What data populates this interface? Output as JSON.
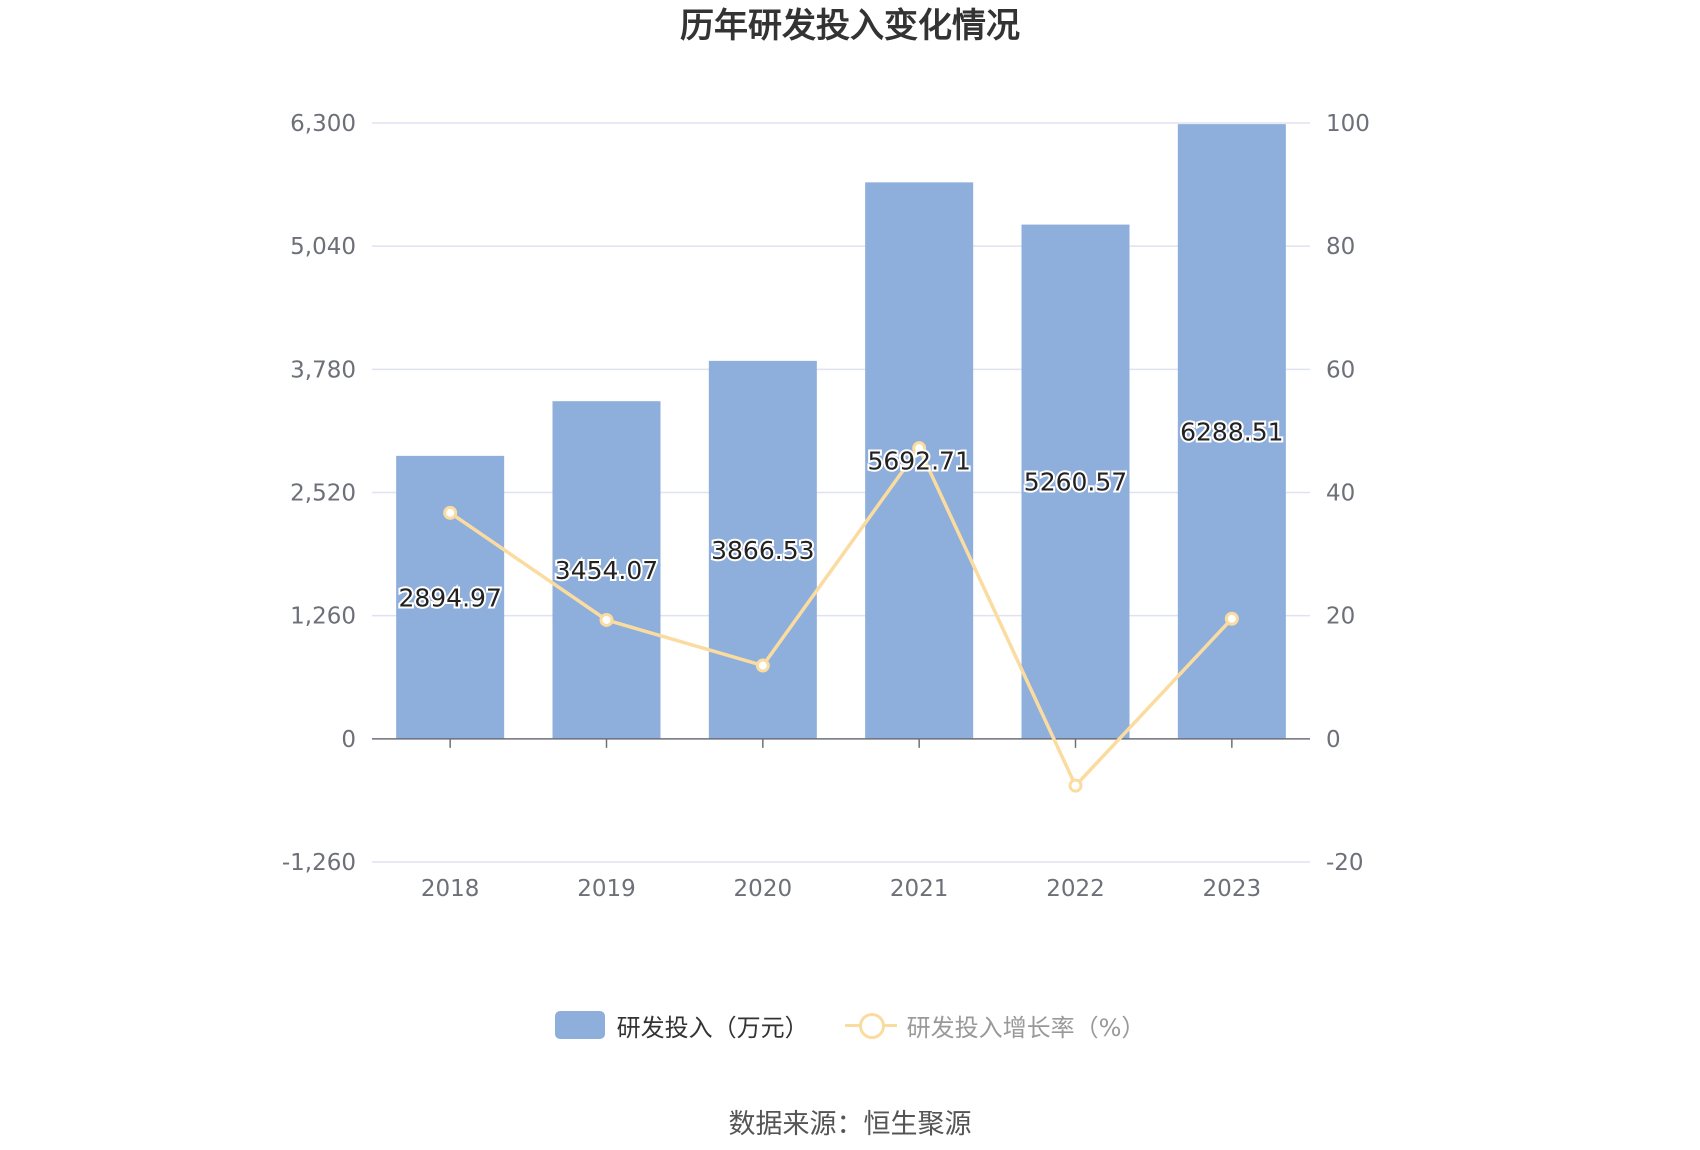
{
  "title": "历年研发投入变化情况",
  "source": "数据来源：恒生聚源",
  "colors": {
    "bar": "#8eaedb",
    "line": "#fbdca0",
    "grid": "#dfe2f0",
    "axis": "#6e7079"
  },
  "legend": [
    {
      "name": "研发投入（万元）",
      "shape": "bar"
    },
    {
      "name": "研发投入增长率（%）",
      "shape": "line"
    }
  ],
  "chart_data": {
    "type": "bar",
    "categories": [
      "2018",
      "2019",
      "2020",
      "2021",
      "2022",
      "2023"
    ],
    "series": [
      {
        "name": "研发投入（万元）",
        "type": "bar",
        "axis": "left",
        "values": [
          2894.97,
          3454.07,
          3866.53,
          5692.71,
          5260.57,
          6288.51
        ],
        "labels": [
          "2894.97",
          "3454.07",
          "3866.53",
          "5692.71",
          "5260.57",
          "6288.51"
        ]
      },
      {
        "name": "研发投入增长率（%）",
        "type": "line",
        "axis": "right",
        "values": [
          36.7,
          19.3,
          11.9,
          47.2,
          -7.6,
          19.5
        ]
      }
    ],
    "y_left": {
      "ticks": [
        -1260,
        0,
        1260,
        2520,
        3780,
        5040,
        6300
      ],
      "tick_labels": [
        "-1,260",
        "0",
        "1,260",
        "2,520",
        "3,780",
        "5,040",
        "6,300"
      ],
      "ylim": [
        -1260,
        6300
      ]
    },
    "y_right": {
      "ticks": [
        -20,
        0,
        20,
        40,
        60,
        80,
        100
      ],
      "tick_labels": [
        "-20",
        "0",
        "20",
        "40",
        "60",
        "80",
        "100"
      ],
      "ylim": [
        -20,
        100
      ]
    },
    "grid": true,
    "legend_position": "bottom"
  }
}
